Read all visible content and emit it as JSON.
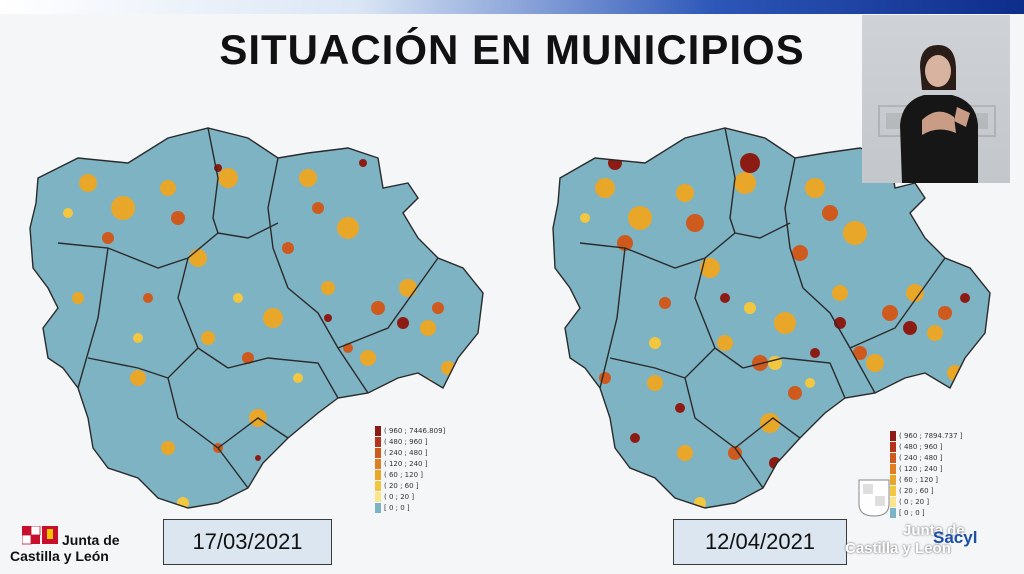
{
  "title": "SITUACIÓN EN MUNICIPIOS",
  "maps": [
    {
      "date": "17/03/2021",
      "legend": [
        "( 960 ; 7446.809]",
        "( 480 ; 960 ]",
        "( 240 ; 480 ]",
        "( 120 ; 240 ]",
        "( 60 ; 120 ]",
        "( 20 ; 60 ]",
        "( 0 ; 20 ]",
        "[ 0 ; 0 ]"
      ]
    },
    {
      "date": "12/04/2021",
      "legend": [
        "( 960 ; 7894.737 ]",
        "( 480 ; 960 ]",
        "( 240 ; 480 ]",
        "( 120 ; 240 ]",
        "( 60 ; 120 ]",
        "( 20 ; 60 ]",
        "( 0 ; 20 ]",
        "[ 0 ; 0 ]"
      ]
    }
  ],
  "legend_colors": [
    "#8c1c13",
    "#b5331b",
    "#cf5a1e",
    "#e07f22",
    "#e9a72a",
    "#f3c640",
    "#fbe58a",
    "#7bb3c7"
  ],
  "logos": {
    "left_line1": "Junta de",
    "left_line2": "Castilla y León",
    "right_line1": "Junta de",
    "right_line2": "Castilla y León",
    "right_brand": "Sacyl"
  },
  "icons": [
    "coat-of-arms-icon",
    "sign-language-interpreter"
  ]
}
